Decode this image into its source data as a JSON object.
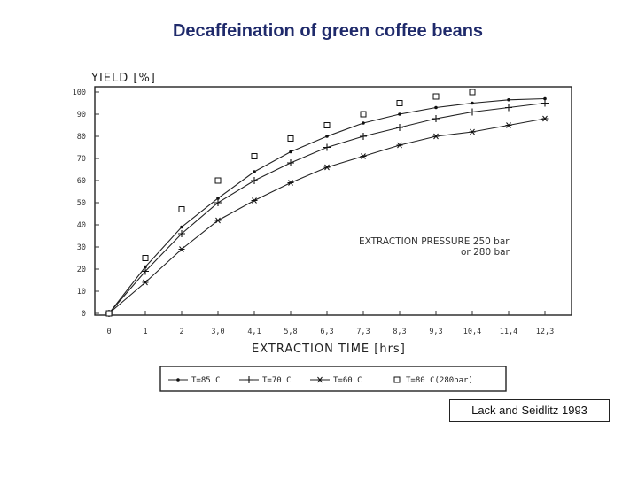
{
  "page": {
    "title": "Decaffeination of green coffee beans"
  },
  "source_note": "Lack and Seidlitz 1993",
  "chart_data": {
    "type": "line",
    "title": "",
    "ylabel": "YIELD [%]",
    "xlabel": "EXTRACTION TIME [hrs]",
    "xlim": [
      0,
      12.3
    ],
    "ylim": [
      0,
      100
    ],
    "x_ticks": [
      "0",
      "1",
      "2",
      "3,0",
      "4,1",
      "5,8",
      "6,3",
      "7,3",
      "8,3",
      "9,3",
      "10,4",
      "11,4",
      "12,3"
    ],
    "y_ticks": [
      "0",
      "10",
      "20",
      "30",
      "40",
      "50",
      "60",
      "70",
      "80",
      "90",
      "100"
    ],
    "annotation": "EXTRACTION PRESSURE 250 bar or 280 bar",
    "grid": false,
    "legend_position": "bottom",
    "series": [
      {
        "name": "T=85 C",
        "marker": "dot",
        "x": [
          0,
          1,
          2,
          3,
          4,
          5,
          6,
          7,
          8,
          9,
          10,
          11,
          12
        ],
        "y": [
          0,
          21,
          39,
          52,
          64,
          73,
          80,
          86,
          90,
          93,
          95,
          96.5,
          97
        ]
      },
      {
        "name": "T=70 C",
        "marker": "plus",
        "x": [
          0,
          1,
          2,
          3,
          4,
          5,
          6,
          7,
          8,
          9,
          10,
          11,
          12
        ],
        "y": [
          0,
          19,
          36,
          50,
          60,
          68,
          75,
          80,
          84,
          88,
          91,
          93,
          95
        ]
      },
      {
        "name": "T=60 C",
        "marker": "star",
        "x": [
          0,
          1,
          2,
          3,
          4,
          5,
          6,
          7,
          8,
          9,
          10,
          11,
          12
        ],
        "y": [
          0,
          14,
          29,
          42,
          51,
          59,
          66,
          71,
          76,
          80,
          82,
          85,
          88
        ]
      },
      {
        "name": "T=80 C(280bar)",
        "marker": "square",
        "x": [
          0,
          1,
          2,
          3,
          4,
          5,
          6,
          7,
          8,
          9,
          10
        ],
        "y": [
          0,
          25,
          47,
          60,
          71,
          79,
          85,
          90,
          95,
          98,
          100
        ]
      }
    ]
  }
}
